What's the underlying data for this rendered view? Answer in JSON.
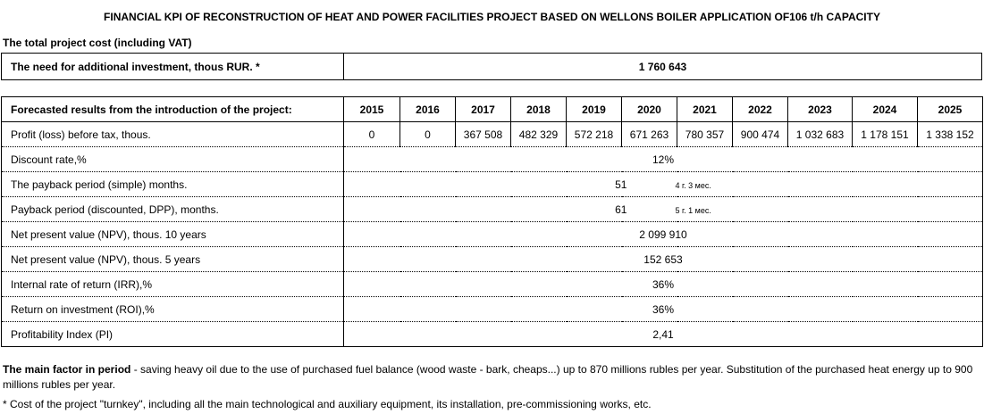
{
  "title": "FINANCIAL KPI OF RECONSTRUCTION OF HEAT AND POWER FACILITIES PROJECT BASED ON  WELLONS BOILER APPLICATION OF106 t/h CAPACITY",
  "subtitle": "The total project cost (including VAT)",
  "investment": {
    "label": "The need for additional investment, thous RUR. *",
    "value": "1 760 643"
  },
  "forecast": {
    "header": "Forecasted results from the introduction of the project:",
    "years": [
      "2015",
      "2016",
      "2017",
      "2018",
      "2019",
      "2020",
      "2021",
      "2022",
      "2023",
      "2024",
      "2025"
    ],
    "profit_label": "Profit (loss) before tax, thous.",
    "profit_values": [
      "0",
      "0",
      "367 508",
      "482 329",
      "572 218",
      "671 263",
      "780 357",
      "900 474",
      "1 032 683",
      "1 178 151",
      "1 338 152"
    ]
  },
  "metrics": [
    {
      "label": "Discount rate,%",
      "value": "12%",
      "note": ""
    },
    {
      "label": "The payback period (simple) months.",
      "value": "51",
      "note": "4 г. 3 мес."
    },
    {
      "label": "Payback period (discounted, DPP), months.",
      "value": "61",
      "note": "5 г. 1 мес."
    },
    {
      "label": "Net present value (NPV), thous. 10 years",
      "value": "2 099 910",
      "note": ""
    },
    {
      "label": "Net present value (NPV), thous. 5 years",
      "value": "152 653",
      "note": ""
    },
    {
      "label": "Internal rate of return (IRR),%",
      "value": "36%",
      "note": ""
    },
    {
      "label": "Return on investment (ROI),%",
      "value": "36%",
      "note": ""
    },
    {
      "label": "Profitability Index (PI)",
      "value": "2,41",
      "note": ""
    }
  ],
  "footer": {
    "bold_lead": "The main factor in period",
    "text": " - saving heavy oil due to the use of purchased fuel balance (wood waste - bark, cheaps...) up to 870 millions rubles per year. Substitution of the purchased heat energy up to 900 millions rubles per year.",
    "footnote": "* Cost of the project \"turnkey\", including all the main technological and auxiliary equipment, its installation, pre-commissioning works, etc."
  }
}
